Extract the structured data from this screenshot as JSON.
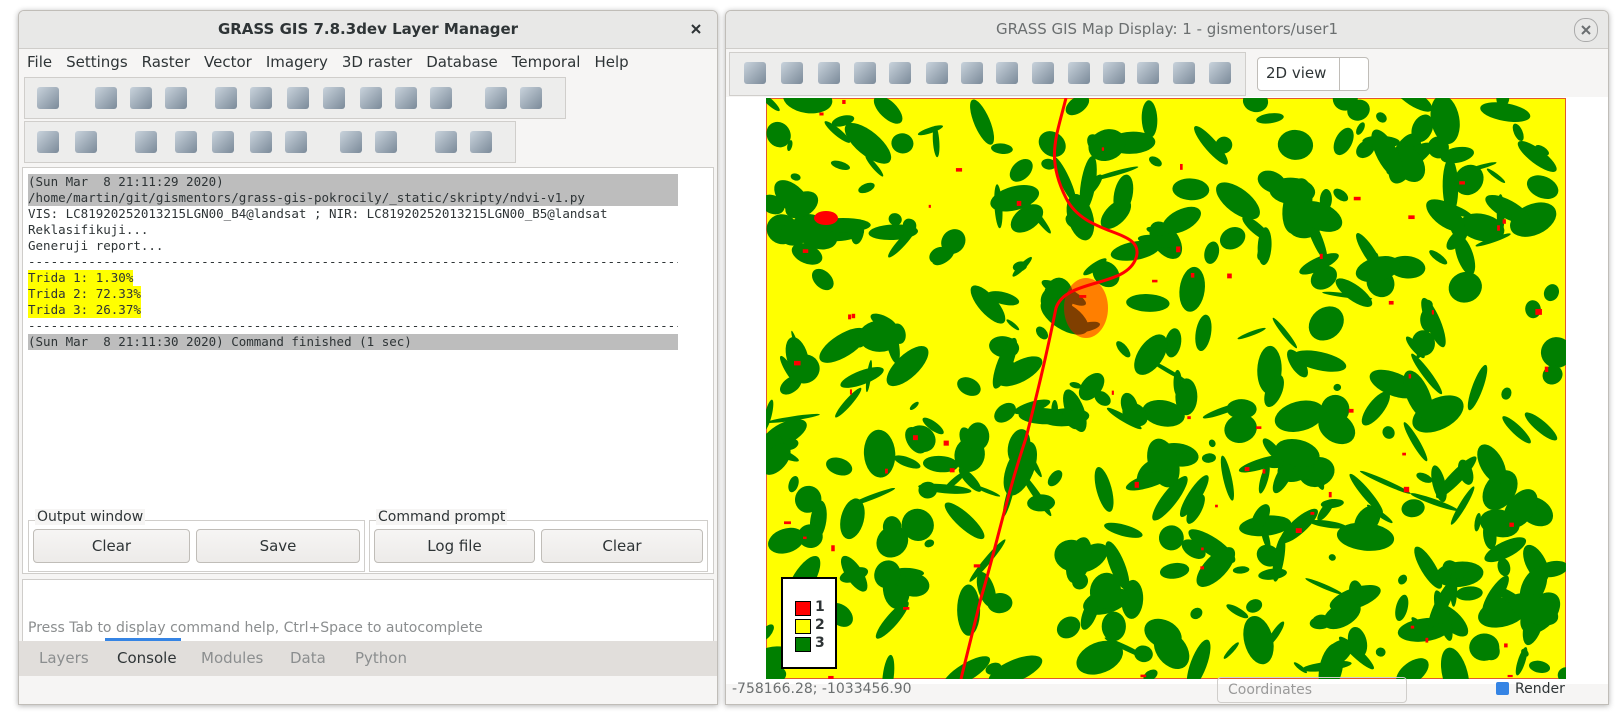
{
  "layer_manager": {
    "title": "GRASS GIS 7.8.3dev Layer Manager",
    "menu": [
      "File",
      "Settings",
      "Raster",
      "Vector",
      "Imagery",
      "3D raster",
      "Database",
      "Temporal",
      "Help"
    ],
    "console_lines": [
      "(Sun Mar  8 21:11:29 2020)",
      "/home/martin/git/gismentors/grass-gis-pokrocily/_static/skripty/ndvi-v1.py",
      "VIS: LC81920252013215LGN00_B4@landsat ; NIR: LC81920252013215LGN00_B5@landsat",
      "Reklasifikuji...",
      "Generuji report...",
      "------------------------------------------------------------------------------------------",
      "Trida 1: 1.30%",
      "Trida 2: 72.33%",
      "Trida 3: 26.37%",
      "------------------------------------------------------------------------------------------",
      "(Sun Mar  8 21:11:30 2020) Command finished (1 sec)"
    ],
    "output_window": {
      "label": "Output window",
      "buttons": [
        "Clear",
        "Save"
      ]
    },
    "command_prompt": {
      "label": "Command prompt",
      "buttons": [
        "Log file",
        "Clear"
      ]
    },
    "hint": "Press Tab to display command help, Ctrl+Space to autocomplete",
    "tabs": [
      "Layers",
      "Console",
      "Modules",
      "Data",
      "Python"
    ]
  },
  "map_display": {
    "title": "GRASS GIS Map Display: 1 - gismentors/user1",
    "view_mode": "2D view",
    "legend": [
      "1",
      "2",
      "3"
    ],
    "coordinates": "-758166.28; -1033456.90",
    "coordinates_mode": "Coordinates",
    "render": "Render"
  }
}
